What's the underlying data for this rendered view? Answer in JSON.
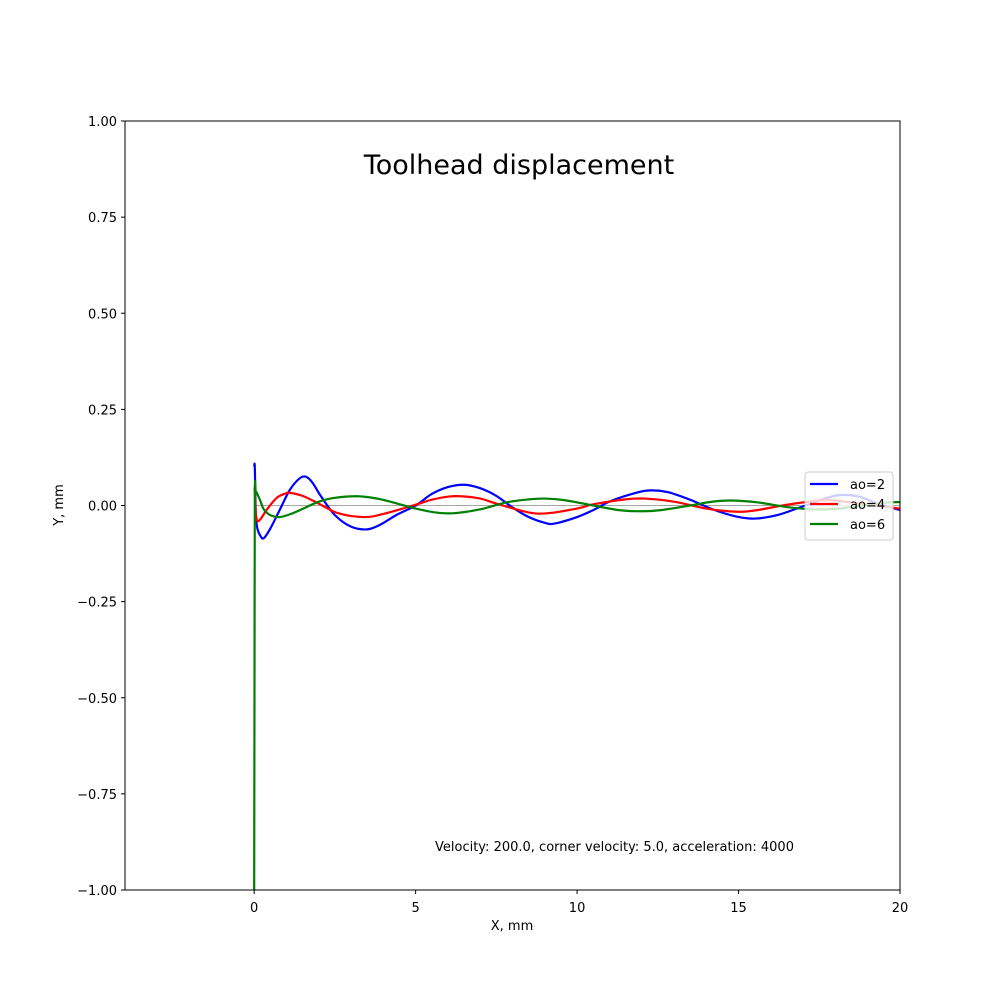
{
  "chart_data": {
    "type": "line",
    "title": "Toolhead displacement",
    "xlabel": "X, mm",
    "ylabel": "Y, mm",
    "xlim": [
      -4,
      20
    ],
    "ylim": [
      -1.0,
      1.0
    ],
    "xticks": [
      0,
      5,
      10,
      15,
      20
    ],
    "xtick_labels": [
      "0",
      "5",
      "10",
      "15",
      "20"
    ],
    "yticks": [
      -1.0,
      -0.75,
      -0.5,
      -0.25,
      0.0,
      0.25,
      0.5,
      0.75,
      1.0
    ],
    "ytick_labels": [
      "−1.00",
      "−0.75",
      "−0.50",
      "−0.25",
      "0.00",
      "0.25",
      "0.50",
      "0.75",
      "1.00"
    ],
    "grid": false,
    "legend_position": "right",
    "annotation": "Velocity: 200.0, corner velocity: 5.0, acceleration: 4000",
    "series": [
      {
        "name": "ao=2",
        "color": "#0000ff",
        "x": [
          0,
          0.02,
          0.05,
          0.1,
          0.2,
          0.3,
          0.5,
          0.8,
          1.1,
          1.4,
          1.6,
          1.8,
          2.1,
          2.5,
          3.0,
          3.5,
          3.9,
          4.4,
          5.0,
          5.5,
          6.0,
          6.5,
          7.0,
          7.5,
          8.0,
          8.5,
          9.0,
          9.3,
          10.0,
          10.5,
          11.0,
          11.7,
          12.2,
          12.8,
          13.5,
          14.2,
          14.9,
          15.5,
          16.2,
          16.9,
          17.6,
          18.1,
          18.7,
          19.3,
          20.0
        ],
        "y": [
          0.1,
          0.1,
          -0.02,
          -0.06,
          -0.08,
          -0.085,
          -0.06,
          -0.01,
          0.04,
          0.07,
          0.075,
          0.06,
          0.02,
          -0.025,
          -0.055,
          -0.062,
          -0.05,
          -0.025,
          0.0,
          0.03,
          0.048,
          0.054,
          0.045,
          0.025,
          -0.005,
          -0.03,
          -0.045,
          -0.047,
          -0.03,
          -0.012,
          0.01,
          0.03,
          0.039,
          0.035,
          0.015,
          -0.01,
          -0.028,
          -0.034,
          -0.025,
          -0.005,
          0.016,
          0.027,
          0.024,
          0.005,
          -0.012
        ]
      },
      {
        "name": "ao=4",
        "color": "#ff0000",
        "x": [
          0,
          0.02,
          0.05,
          0.1,
          0.2,
          0.4,
          0.7,
          1.0,
          1.1,
          1.5,
          2.0,
          2.6,
          3.4,
          4.0,
          5.0,
          5.5,
          6.0,
          6.4,
          7.0,
          7.5,
          8.5,
          9.1,
          10.0,
          10.5,
          11.5,
          12.1,
          13.0,
          14.0,
          14.9,
          15.5,
          16.5,
          17.5,
          18.0,
          19.0,
          20.0
        ],
        "y": [
          0.045,
          0.04,
          -0.02,
          -0.04,
          -0.035,
          -0.01,
          0.02,
          0.032,
          0.033,
          0.025,
          0.005,
          -0.02,
          -0.03,
          -0.022,
          0.002,
          0.015,
          0.023,
          0.024,
          0.018,
          0.005,
          -0.018,
          -0.02,
          -0.008,
          0.003,
          0.016,
          0.018,
          0.01,
          -0.008,
          -0.016,
          -0.013,
          0.002,
          0.013,
          0.013,
          0.002,
          -0.008
        ]
      },
      {
        "name": "ao=6",
        "color": "#008000",
        "x": [
          0,
          0.01,
          0.02,
          0.05,
          0.1,
          0.2,
          0.3,
          0.5,
          0.8,
          1.2,
          1.6,
          2.0,
          2.5,
          3.2,
          3.8,
          4.3,
          5.0,
          5.6,
          6.2,
          7.0,
          7.8,
          8.5,
          9.0,
          9.6,
          10.5,
          11.3,
          12.0,
          12.6,
          13.5,
          14.2,
          14.8,
          15.6,
          16.5,
          17.3,
          18.0,
          18.8,
          19.5,
          20.0
        ],
        "y": [
          -1.0,
          -0.5,
          0.02,
          0.035,
          0.03,
          0.01,
          -0.01,
          -0.025,
          -0.03,
          -0.02,
          -0.005,
          0.01,
          0.02,
          0.024,
          0.018,
          0.008,
          -0.008,
          -0.018,
          -0.02,
          -0.01,
          0.008,
          0.016,
          0.018,
          0.014,
          0.0,
          -0.012,
          -0.015,
          -0.012,
          0.0,
          0.01,
          0.013,
          0.008,
          -0.004,
          -0.01,
          -0.009,
          0.0,
          0.007,
          0.009
        ]
      }
    ]
  }
}
